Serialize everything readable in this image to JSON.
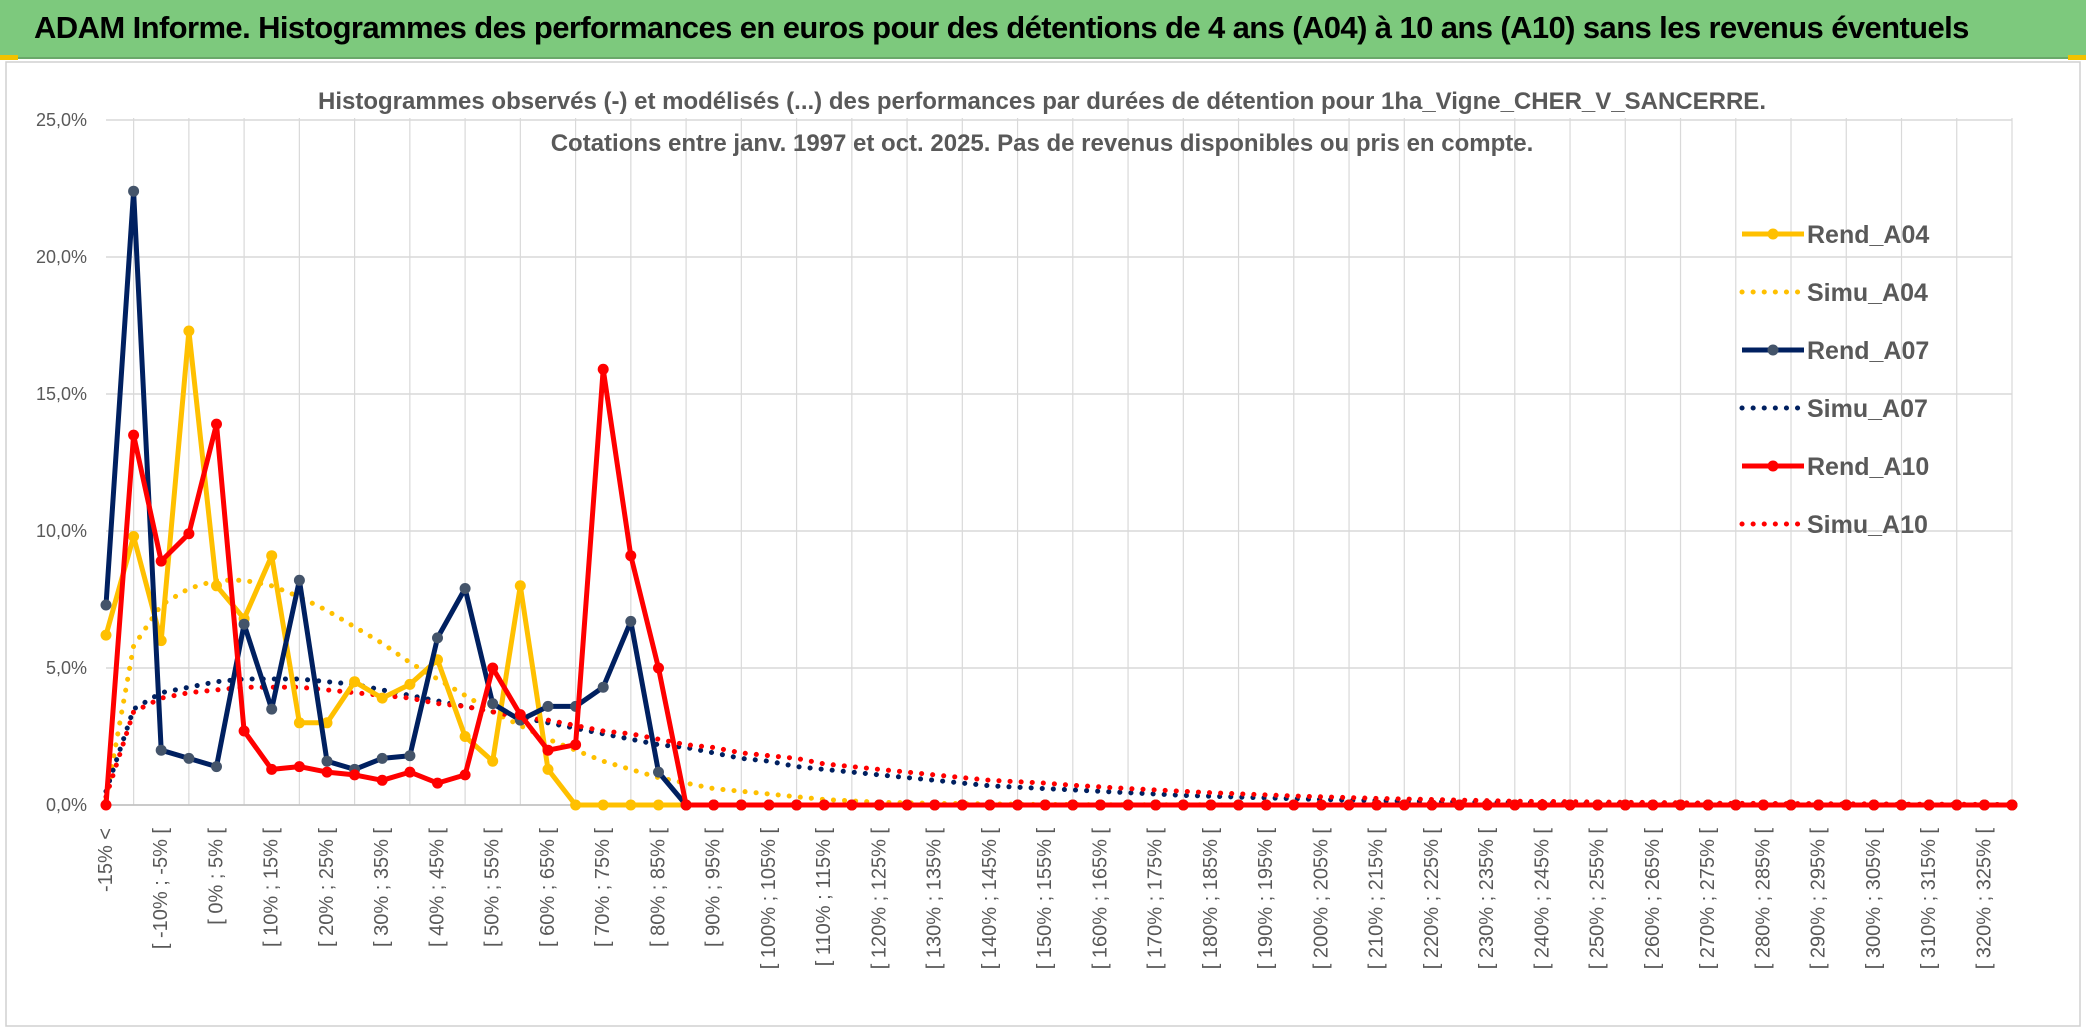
{
  "header": {
    "title": "ADAM Informe. Histogrammes des performances en euros pour des détentions de 4 ans (A04) à 10 ans (A10) sans les revenus éventuels"
  },
  "colors": {
    "banner": "#7dc97d",
    "A04": "#ffc000",
    "A07": "#002060",
    "A10": "#ff0000",
    "marker_A07": "#44546a",
    "grid": "#d9d9d9"
  },
  "chart_data": {
    "type": "line",
    "title_lines": [
      "Histogrammes observés (-) et modélisés (...) des performances par durées de détention pour 1ha_Vigne_CHER_V_SANCERRE.",
      "Cotations entre janv. 1997 et oct. 2025. Pas de revenus disponibles ou pris en compte."
    ],
    "ylim": [
      0,
      25
    ],
    "yticks": [
      0,
      5,
      10,
      15,
      20,
      25
    ],
    "ytick_labels": [
      "0,0%",
      "5,0%",
      "10,0%",
      "15,0%",
      "20,0%",
      "25,0%"
    ],
    "grid": true,
    "legend_position": "right",
    "x_tick_labels": [
      "-15% <",
      "[ -10% ; -5% [",
      "[ 0% ; 5% [",
      "[ 10% ; 15% [",
      "[ 20% ; 25% [",
      "[ 30% ; 35% [",
      "[ 40% ; 45% [",
      "[ 50% ; 55% [",
      "[ 60% ; 65% [",
      "[ 70% ; 75% [",
      "[ 80% ; 85% [",
      "[ 90% ; 95% [",
      "[ 100% ; 105% [",
      "[ 110% ; 115% [",
      "[ 120% ; 125% [",
      "[ 130% ; 135% [",
      "[ 140% ; 145% [",
      "[ 150% ; 155% [",
      "[ 160% ; 165% [",
      "[ 170% ; 175% [",
      "[ 180% ; 185% [",
      "[ 190% ; 195% [",
      "[ 200% ; 205% [",
      "[ 210% ; 215% [",
      "[ 220% ; 225% [",
      "[ 230% ; 235% [",
      "[ 240% ; 245% [",
      "[ 250% ; 255% [",
      "[ 260% ; 265% [",
      "[ 270% ; 275% [",
      "[ 280% ; 285% [",
      "[ 290% ; 295% [",
      "[ 300% ; 305% [",
      "[ 310% ; 315% [",
      "[ 320% ; 325% ["
    ],
    "series": [
      {
        "name": "Rend_A04",
        "style": "solid",
        "color": "#ffc000",
        "values": [
          6.2,
          9.8,
          6.0,
          17.3,
          8.0,
          6.8,
          9.1,
          3.0,
          3.0,
          4.5,
          3.9,
          4.4,
          5.3,
          2.5,
          1.6,
          8.0,
          1.3,
          0,
          0,
          0,
          0,
          0,
          0,
          0,
          0,
          0,
          0,
          0,
          0,
          0,
          0,
          0,
          0,
          0,
          0,
          0,
          0,
          0,
          0,
          0,
          0,
          0,
          0,
          0,
          0,
          0,
          0,
          0,
          0,
          0,
          0,
          0,
          0,
          0,
          0,
          0,
          0,
          0,
          0,
          0,
          0,
          0,
          0,
          0,
          0,
          0,
          0,
          0,
          0,
          0
        ]
      },
      {
        "name": "Simu_A04",
        "style": "dotted",
        "color": "#ffc000",
        "values": [
          0.2,
          5.8,
          7.3,
          7.9,
          8.2,
          8.2,
          8.0,
          7.6,
          7.1,
          6.5,
          5.9,
          5.2,
          4.6,
          4.0,
          3.4,
          2.9,
          2.4,
          2.0,
          1.6,
          1.3,
          1.0,
          0.8,
          0.6,
          0.5,
          0.4,
          0.3,
          0.2,
          0.15,
          0.1,
          0.08,
          0.06,
          0.05,
          0.04,
          0.03,
          0.02,
          0.02,
          0.01,
          0.01,
          0.01,
          0.01,
          0.01,
          0,
          0,
          0,
          0,
          0,
          0,
          0,
          0,
          0,
          0,
          0,
          0,
          0,
          0,
          0,
          0,
          0,
          0,
          0,
          0,
          0,
          0,
          0,
          0,
          0,
          0,
          0,
          0,
          0
        ]
      },
      {
        "name": "Rend_A07",
        "style": "solid",
        "color": "#002060",
        "values": [
          7.3,
          22.4,
          2.0,
          1.7,
          1.4,
          6.6,
          3.5,
          8.2,
          1.6,
          1.3,
          1.7,
          1.8,
          6.1,
          7.9,
          3.7,
          3.1,
          3.6,
          3.6,
          4.3,
          6.7,
          1.2,
          0,
          0,
          0,
          0,
          0,
          0,
          0,
          0,
          0,
          0,
          0,
          0,
          0,
          0,
          0,
          0,
          0,
          0,
          0,
          0,
          0,
          0,
          0,
          0,
          0,
          0,
          0,
          0,
          0,
          0,
          0,
          0,
          0,
          0,
          0,
          0,
          0,
          0,
          0,
          0,
          0,
          0,
          0,
          0,
          0,
          0,
          0,
          0,
          0
        ]
      },
      {
        "name": "Simu_A07",
        "style": "dotted",
        "color": "#002060",
        "values": [
          0.5,
          3.5,
          4.1,
          4.3,
          4.5,
          4.6,
          4.6,
          4.6,
          4.5,
          4.4,
          4.2,
          4.0,
          3.8,
          3.6,
          3.4,
          3.2,
          3.0,
          2.8,
          2.6,
          2.4,
          2.2,
          2.1,
          1.9,
          1.7,
          1.6,
          1.4,
          1.3,
          1.2,
          1.1,
          1.0,
          0.9,
          0.8,
          0.7,
          0.65,
          0.6,
          0.55,
          0.5,
          0.45,
          0.4,
          0.35,
          0.32,
          0.29,
          0.26,
          0.23,
          0.2,
          0.18,
          0.16,
          0.14,
          0.12,
          0.11,
          0.1,
          0.09,
          0.08,
          0.07,
          0.06,
          0.05,
          0.05,
          0.04,
          0.04,
          0.03,
          0.03,
          0.03,
          0.02,
          0.02,
          0.02,
          0.02,
          0.01,
          0.01,
          0.01,
          0.01
        ]
      },
      {
        "name": "Rend_A10",
        "style": "solid",
        "color": "#ff0000",
        "values": [
          0,
          13.5,
          8.9,
          9.9,
          13.9,
          2.7,
          1.3,
          1.4,
          1.2,
          1.1,
          0.9,
          1.2,
          0.8,
          1.1,
          5.0,
          3.3,
          2.0,
          2.2,
          15.9,
          9.1,
          5.0,
          0,
          0,
          0,
          0,
          0,
          0,
          0,
          0,
          0,
          0,
          0,
          0,
          0,
          0,
          0,
          0,
          0,
          0,
          0,
          0,
          0,
          0,
          0,
          0,
          0,
          0,
          0,
          0,
          0,
          0,
          0,
          0,
          0,
          0,
          0,
          0,
          0,
          0,
          0,
          0,
          0,
          0,
          0,
          0,
          0,
          0,
          0,
          0,
          0
        ]
      },
      {
        "name": "Simu_A10",
        "style": "dotted",
        "color": "#ff0000",
        "values": [
          0.3,
          3.4,
          3.9,
          4.1,
          4.2,
          4.3,
          4.3,
          4.3,
          4.2,
          4.1,
          4.0,
          3.9,
          3.7,
          3.6,
          3.4,
          3.2,
          3.1,
          2.9,
          2.7,
          2.6,
          2.4,
          2.2,
          2.1,
          1.9,
          1.8,
          1.7,
          1.5,
          1.4,
          1.3,
          1.2,
          1.1,
          1.0,
          0.9,
          0.85,
          0.8,
          0.72,
          0.66,
          0.6,
          0.55,
          0.5,
          0.45,
          0.41,
          0.37,
          0.33,
          0.3,
          0.27,
          0.24,
          0.22,
          0.2,
          0.18,
          0.16,
          0.14,
          0.13,
          0.12,
          0.11,
          0.1,
          0.09,
          0.08,
          0.07,
          0.06,
          0.06,
          0.05,
          0.05,
          0.04,
          0.04,
          0.03,
          0.03,
          0.03,
          0.02,
          0.02
        ]
      }
    ]
  }
}
